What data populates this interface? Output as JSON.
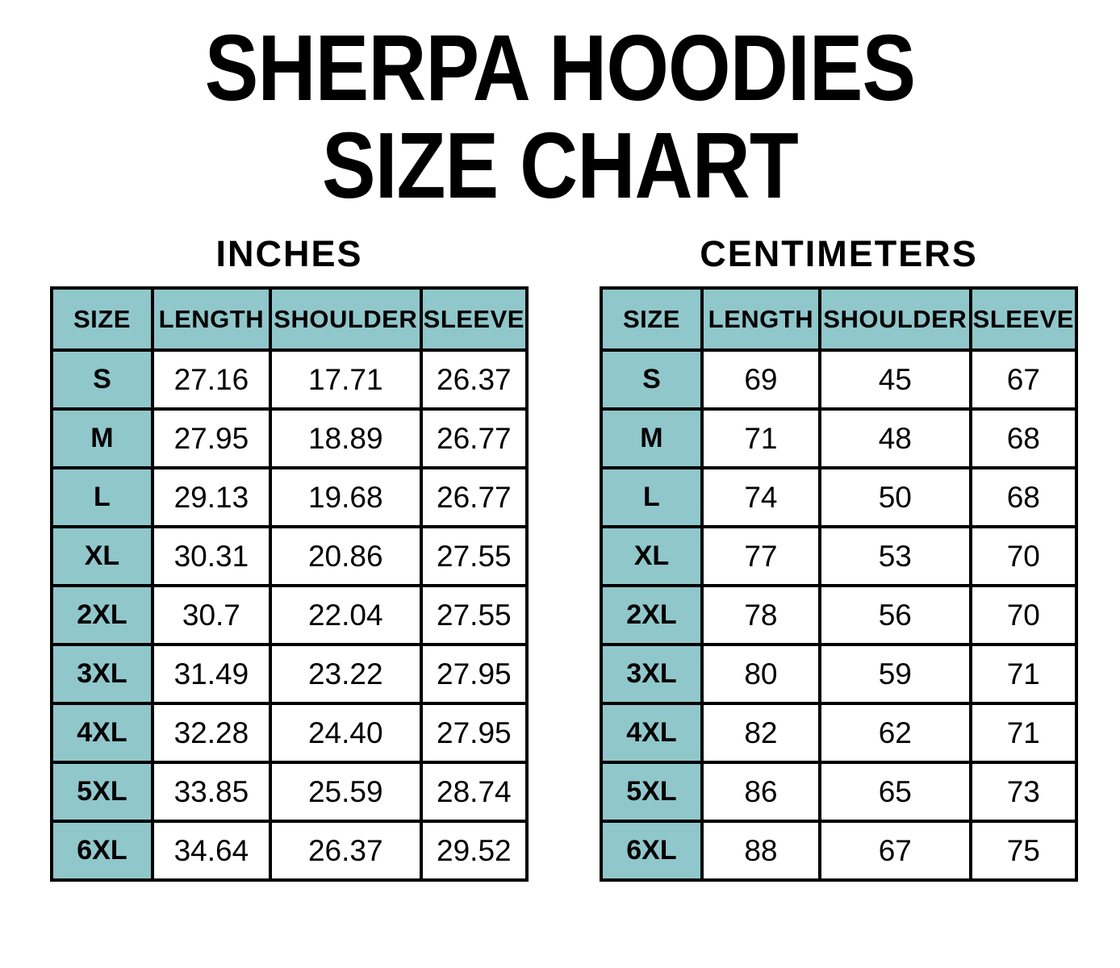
{
  "title": {
    "line1": "SHERPA HOODIES",
    "line2": "SIZE CHART"
  },
  "colors": {
    "table_header_bg": "#90C7CB",
    "table_border": "#000000",
    "page_bg": "#FFFFFF",
    "text": "#000000"
  },
  "chart_data": [
    {
      "type": "table",
      "title": "INCHES",
      "columns": [
        "SIZE",
        "LENGTH",
        "SHOULDER",
        "SLEEVE"
      ],
      "rows": [
        [
          "S",
          "27.16",
          "17.71",
          "26.37"
        ],
        [
          "M",
          "27.95",
          "18.89",
          "26.77"
        ],
        [
          "L",
          "29.13",
          "19.68",
          "26.77"
        ],
        [
          "XL",
          "30.31",
          "20.86",
          "27.55"
        ],
        [
          "2XL",
          "30.7",
          "22.04",
          "27.55"
        ],
        [
          "3XL",
          "31.49",
          "23.22",
          "27.95"
        ],
        [
          "4XL",
          "32.28",
          "24.40",
          "27.95"
        ],
        [
          "5XL",
          "33.85",
          "25.59",
          "28.74"
        ],
        [
          "6XL",
          "34.64",
          "26.37",
          "29.52"
        ]
      ]
    },
    {
      "type": "table",
      "title": "CENTIMETERS",
      "columns": [
        "SIZE",
        "LENGTH",
        "SHOULDER",
        "SLEEVE"
      ],
      "rows": [
        [
          "S",
          "69",
          "45",
          "67"
        ],
        [
          "M",
          "71",
          "48",
          "68"
        ],
        [
          "L",
          "74",
          "50",
          "68"
        ],
        [
          "XL",
          "77",
          "53",
          "70"
        ],
        [
          "2XL",
          "78",
          "56",
          "70"
        ],
        [
          "3XL",
          "80",
          "59",
          "71"
        ],
        [
          "4XL",
          "82",
          "62",
          "71"
        ],
        [
          "5XL",
          "86",
          "65",
          "73"
        ],
        [
          "6XL",
          "88",
          "67",
          "75"
        ]
      ]
    }
  ]
}
